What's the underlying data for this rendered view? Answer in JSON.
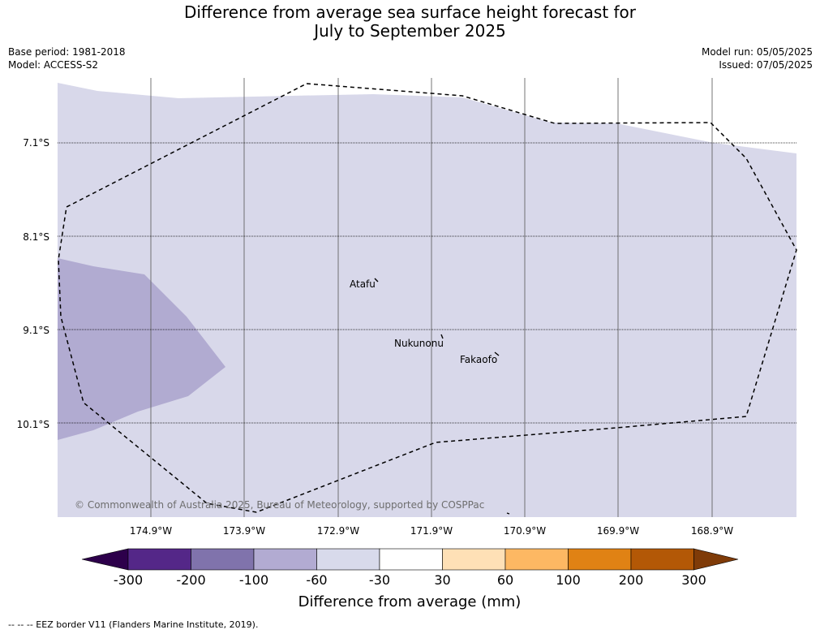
{
  "title_line1": "Difference from average sea surface height forecast for",
  "title_line2": "July to September 2025",
  "meta_left": [
    "Base period: 1981-2018",
    "Model: ACCESS-S2"
  ],
  "meta_right": [
    "Model run: 05/05/2025",
    "Issued: 07/05/2025"
  ],
  "map": {
    "lat_labels": [
      "7.1°S",
      "8.1°S",
      "9.1°S",
      "10.1°S"
    ],
    "lon_labels": [
      "174.9°W",
      "173.9°W",
      "172.9°W",
      "171.9°W",
      "170.9°W",
      "169.9°W",
      "168.9°W"
    ],
    "places": [
      "Atafu",
      "Nukunonu",
      "Fakaofo"
    ],
    "copyright": "© Commonwealth of Australia 2025, Bureau of Meteorology, supported by COSPPac",
    "fill_colors": {
      "ocean_-60_-30": "#d8d8ea",
      "band_-100_-60": "#b1abd1"
    }
  },
  "colorbar": {
    "tick_labels": [
      "-300",
      "-200",
      "-100",
      "-60",
      "-30",
      "30",
      "60",
      "100",
      "200",
      "300"
    ],
    "colors": [
      "#2d004b",
      "#542788",
      "#8073ac",
      "#b2abd2",
      "#d8daeb",
      "#ffffff",
      "#fee0b6",
      "#fdb863",
      "#e08214",
      "#b35806",
      "#7f3b08"
    ],
    "label": "Difference from average (mm)"
  },
  "footer": "-- -- -- EEZ border V11 (Flanders Marine Institute, 2019)."
}
